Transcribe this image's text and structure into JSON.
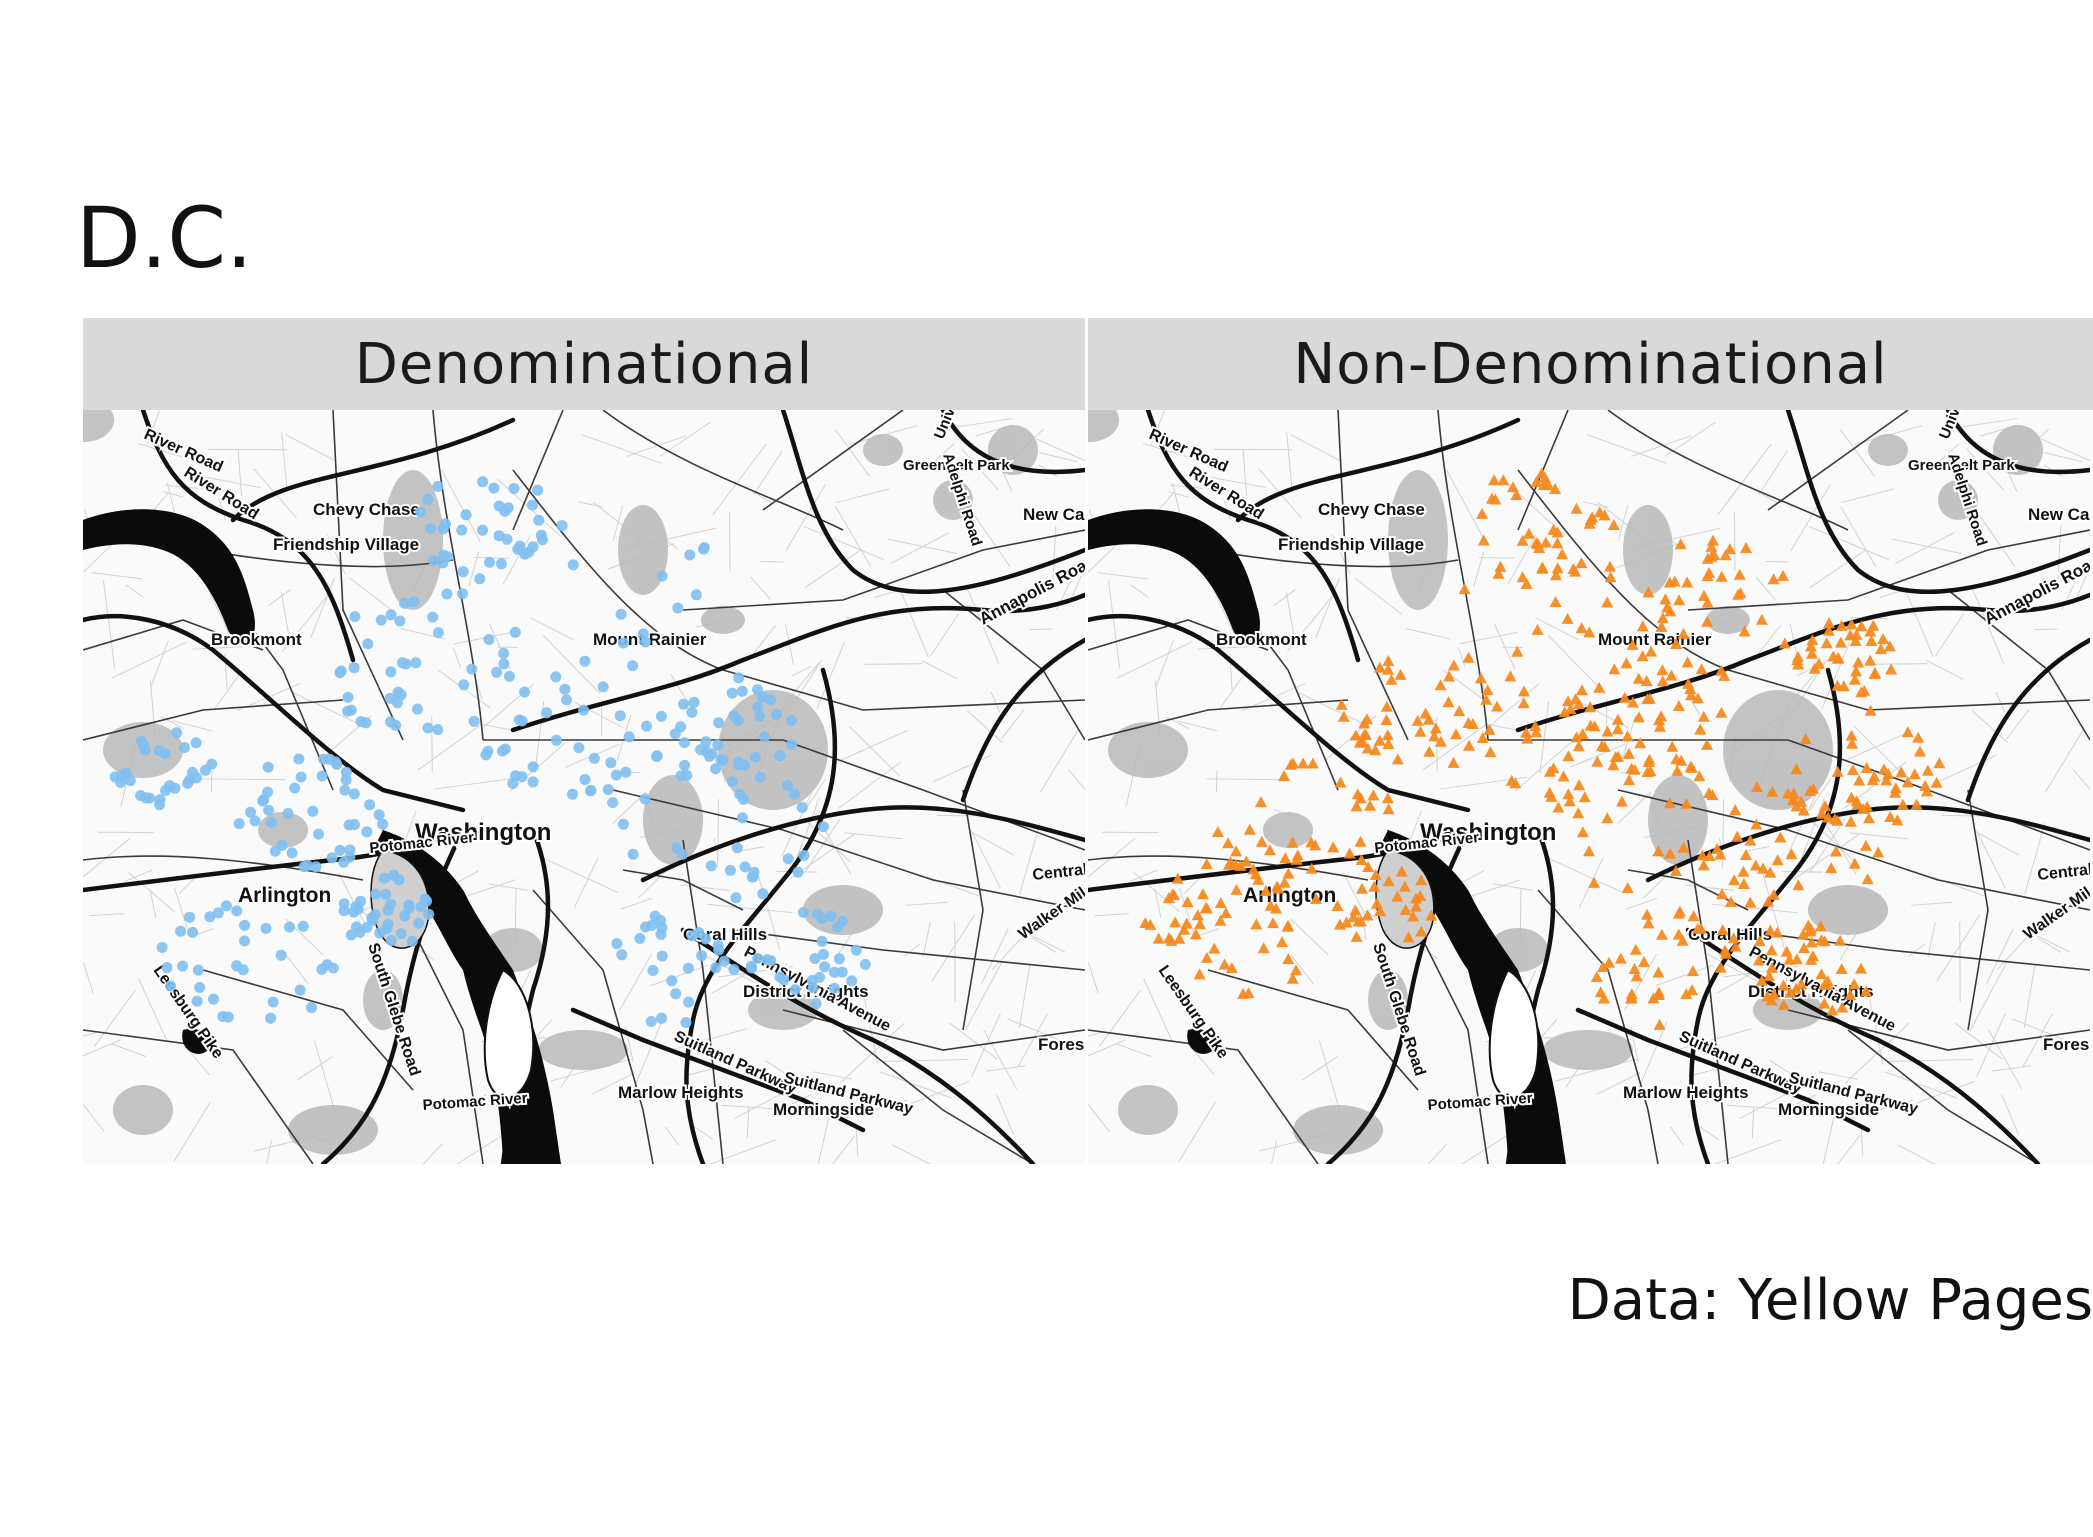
{
  "title": "D.C.",
  "source": "Data: Yellow Pages",
  "panels": [
    {
      "label": "Denominational",
      "marker": "circle",
      "color": "#7fbff0"
    },
    {
      "label": "Non-Denominational",
      "marker": "triangle",
      "color": "#f58a1f"
    }
  ],
  "place_labels": {
    "river_road_1": "River Road",
    "river_road_2": "River Road",
    "chevy_chase": "Chevy Chase",
    "friendship_village": "Friendship Village",
    "brookmont": "Brookmont",
    "mount_rainier": "Mount Rainier",
    "washington": "Washington",
    "potomac_river_1": "Potomac River",
    "potomac_river_2": "Potomac River",
    "arlington": "Arlington",
    "leesburg_pike": "Leesburg Pike",
    "south_glebe_road": "South Glebe Road",
    "coral_hills": "Coral Hills",
    "district_heights": "District Heights",
    "marlow_heights": "Marlow Heights",
    "morningside": "Morningside",
    "suitland_parkway_1": "Suitland Parkway",
    "suitland_parkway_2": "Suitland Parkway",
    "pennsylvania_avenue": "Pennsylvania Avenue",
    "greenbelt_park": "Greenbelt Park",
    "new_carrollton": "New Carro",
    "annapolis_road": "Annapolis Road",
    "central_ave": "Central A",
    "walker_mill": "Walker Mil",
    "forest": "Fores",
    "university": "University",
    "adelphi_road": "Adelphi Road"
  }
}
